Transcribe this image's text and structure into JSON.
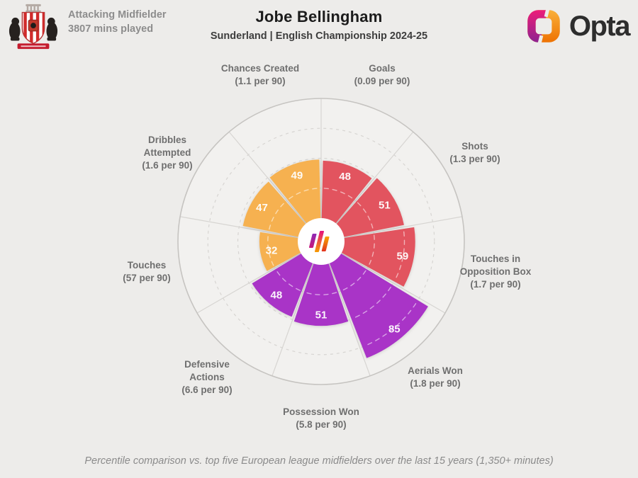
{
  "header": {
    "position": "Attacking Midfielder",
    "minutes": "3807 mins played",
    "title": "Jobe Bellingham",
    "subtitle": "Sunderland | English Championship 2024-25",
    "brand_wordmark": "Opta",
    "icons": {
      "club_crest": "sunderland-crest-icon",
      "brand": "opta-logo-icon",
      "chart_center": "opta-bars-icon"
    }
  },
  "footer": {
    "note": "Percentile comparison vs. top five European league midfielders over the last 15 years (1,350+ minutes)"
  },
  "colors": {
    "attacking_red": "#e2545f",
    "defending_purple": "#a934c7",
    "possession_orange": "#f6b150",
    "page_background": "#edecea",
    "grid": "#d7d5d2",
    "outer_ring": "#c6c4c1"
  },
  "chart_data": {
    "type": "bar",
    "subtype": "polar-pizza-percentile",
    "title": "Jobe Bellingham percentile pizza chart",
    "range": [
      0,
      100
    ],
    "gridlines": [
      25,
      50,
      75
    ],
    "grid_style": "dashed",
    "start_angle_deg": 0,
    "slice_angle_deg": 40,
    "order": "clockwise-from-top",
    "value_meaning": "percentile",
    "slices": [
      {
        "label": "Goals",
        "name_lines": "Goals",
        "per90": "(0.09 per 90)",
        "percentile": 48,
        "color": "#e2545f"
      },
      {
        "label": "Shots",
        "name_lines": "Shots",
        "per90": "(1.3 per 90)",
        "percentile": 51,
        "color": "#e2545f"
      },
      {
        "label": "Touches in Opposition Box",
        "name_lines": "Touches in\nOpposition Box",
        "per90": "(1.7 per 90)",
        "percentile": 59,
        "color": "#e2545f"
      },
      {
        "label": "Aerials Won",
        "name_lines": "Aerials Won",
        "per90": "(1.8 per 90)",
        "percentile": 85,
        "color": "#a934c7"
      },
      {
        "label": "Possession Won",
        "name_lines": "Possession Won",
        "per90": "(5.8 per 90)",
        "percentile": 51,
        "color": "#a934c7"
      },
      {
        "label": "Defensive Actions",
        "name_lines": "Defensive\nActions",
        "per90": "(6.6 per 90)",
        "percentile": 48,
        "color": "#a934c7"
      },
      {
        "label": "Touches",
        "name_lines": "Touches",
        "per90": "(57 per 90)",
        "percentile": 32,
        "color": "#f6b150"
      },
      {
        "label": "Dribbles Attempted",
        "name_lines": "Dribbles\nAttempted",
        "per90": "(1.6 per 90)",
        "percentile": 47,
        "color": "#f6b150"
      },
      {
        "label": "Chances Created",
        "name_lines": "Chances Created",
        "per90": "(1.1 per 90)",
        "percentile": 49,
        "color": "#f6b150"
      }
    ]
  }
}
